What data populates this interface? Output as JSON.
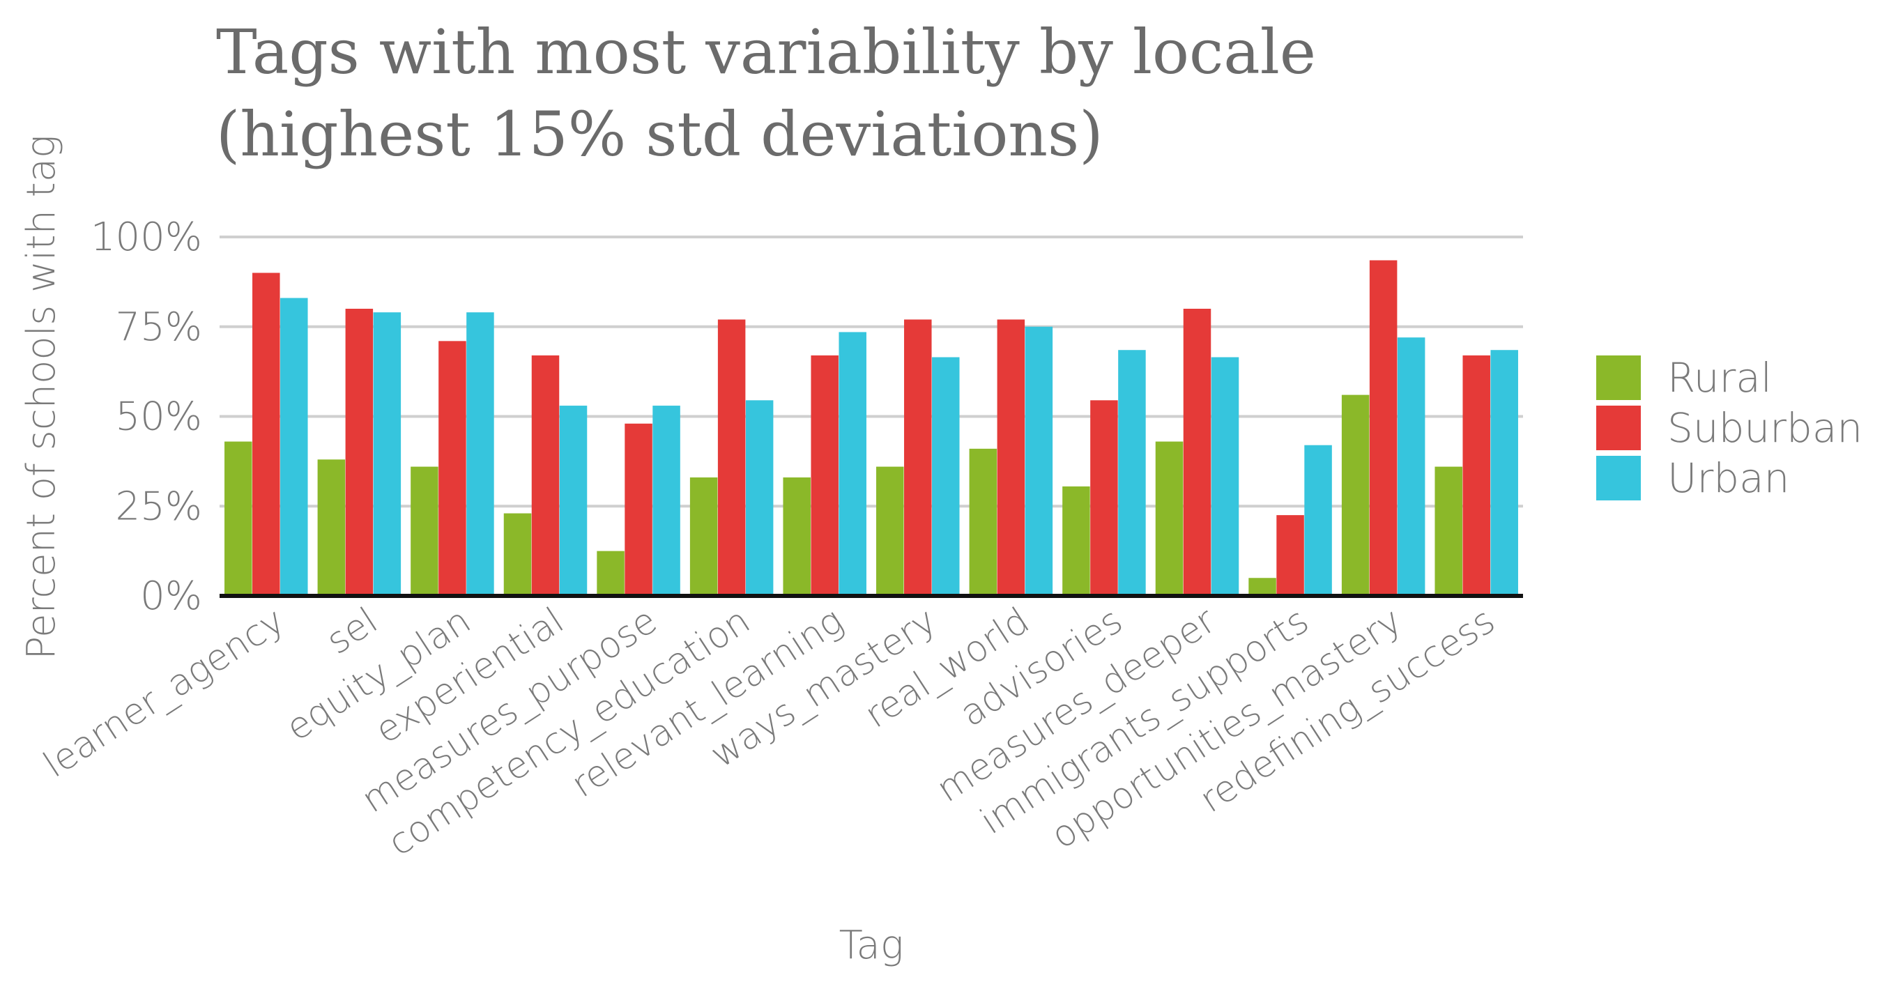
{
  "chart_data": {
    "type": "bar",
    "title_lines": [
      "Tags with most variability by locale",
      "(highest 15% std deviations)"
    ],
    "xlabel": "Tag",
    "ylabel": "Percent of schools with tag",
    "ylim": [
      0,
      1
    ],
    "y_ticks": [
      0,
      0.25,
      0.5,
      0.75,
      1
    ],
    "y_tick_labels": [
      "0%",
      "25%",
      "50%",
      "75%",
      "100%"
    ],
    "grid": true,
    "legend_position": "right",
    "categories": [
      "learner_agency",
      "sel",
      "equity_plan",
      "experiential",
      "measures_purpose",
      "competency_education",
      "relevant_learning",
      "ways_mastery",
      "real_world",
      "advisories",
      "measures_deeper",
      "immigrants_supports",
      "opportunities_mastery",
      "redefining_success"
    ],
    "series": [
      {
        "name": "Rural",
        "color": "#8bb829",
        "values": [
          0.43,
          0.38,
          0.36,
          0.23,
          0.125,
          0.33,
          0.33,
          0.36,
          0.41,
          0.305,
          0.43,
          0.05,
          0.56,
          0.36
        ]
      },
      {
        "name": "Suburban",
        "color": "#e53a38",
        "values": [
          0.9,
          0.8,
          0.71,
          0.67,
          0.48,
          0.77,
          0.67,
          0.77,
          0.77,
          0.545,
          0.8,
          0.225,
          0.935,
          0.67
        ]
      },
      {
        "name": "Urban",
        "color": "#36c5dd",
        "values": [
          0.83,
          0.79,
          0.79,
          0.53,
          0.53,
          0.545,
          0.735,
          0.665,
          0.75,
          0.685,
          0.665,
          0.42,
          0.72,
          0.685
        ]
      }
    ]
  }
}
